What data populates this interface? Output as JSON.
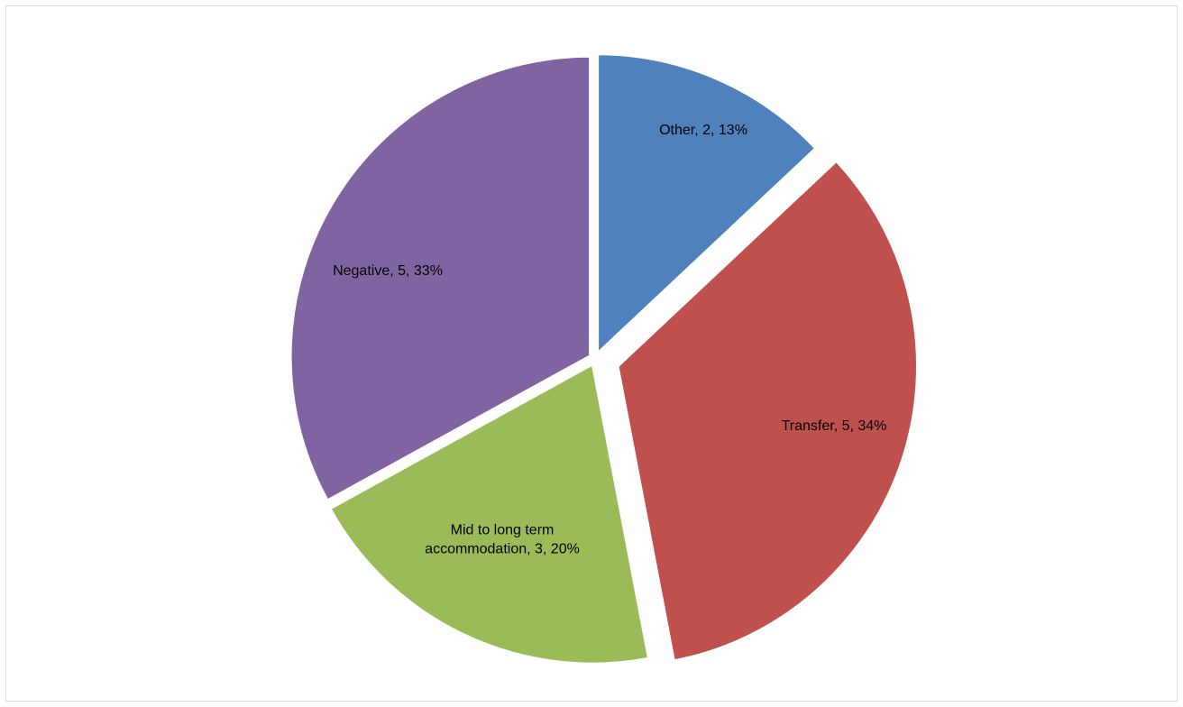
{
  "chart_data": {
    "type": "pie",
    "title": "",
    "slices": [
      {
        "label": "Other",
        "value": 2,
        "percent": 13,
        "color": "#4F81BD",
        "data_label_lines": [
          "Other, 2, 13%"
        ]
      },
      {
        "label": "Transfer",
        "value": 5,
        "percent": 34,
        "color": "#C0504D",
        "data_label_lines": [
          "Transfer, 5, 34%"
        ]
      },
      {
        "label": "Mid to long term accommodation",
        "value": 3,
        "percent": 20,
        "color": "#9BBB59",
        "data_label_lines": [
          "Mid to long term",
          "accommodation, 3, 20%"
        ]
      },
      {
        "label": "Negative",
        "value": 5,
        "percent": 33,
        "color": "#8064A2",
        "data_label_lines": [
          "Negative, 5, 33%"
        ]
      }
    ],
    "legend": "none",
    "data_labels": "inside"
  }
}
